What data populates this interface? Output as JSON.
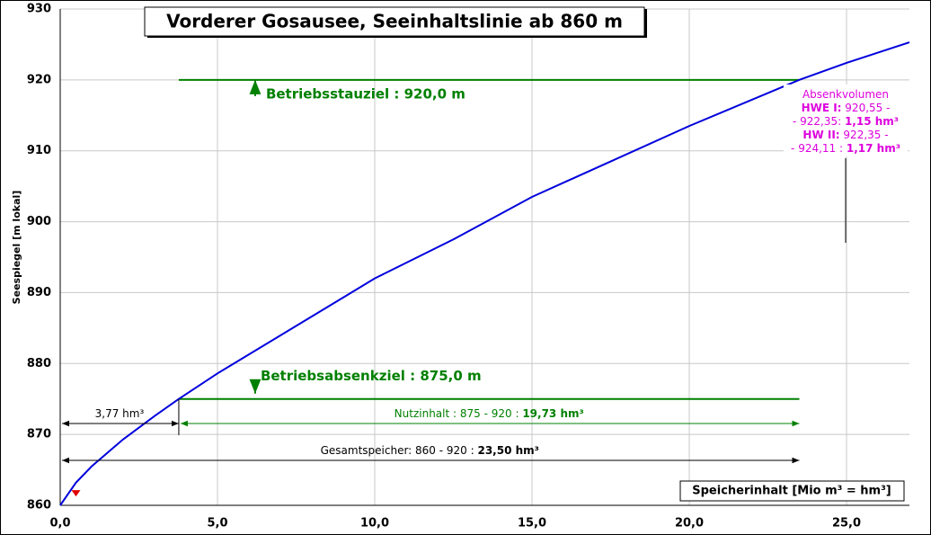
{
  "chart_data": {
    "type": "line",
    "title": "Vorderer Gosausee, Seeinhaltslinie ab  860 m",
    "y_label": "Seespiegel [m lokal]",
    "x_label": "Speicherinhalt  [Mio m³ = hm³]",
    "xlim": [
      0,
      27
    ],
    "ylim": [
      860,
      930
    ],
    "xticks": [
      {
        "value": 0,
        "label": "0,0"
      },
      {
        "value": 5,
        "label": "5,0"
      },
      {
        "value": 10,
        "label": "10,0"
      },
      {
        "value": 15,
        "label": "15,0"
      },
      {
        "value": 20,
        "label": "20,0"
      },
      {
        "value": 25,
        "label": "25,0"
      }
    ],
    "yticks": [
      860,
      870,
      880,
      890,
      900,
      910,
      920,
      930
    ],
    "grid": true,
    "series": [
      {
        "color": "#0000dd",
        "x": [
          0,
          0.5,
          1,
          2,
          3,
          3.77,
          5,
          7.5,
          10,
          12.5,
          15,
          17.5,
          20,
          23.5,
          25,
          27
        ],
        "values": [
          860,
          863.2,
          865.5,
          869.3,
          872.6,
          875,
          878.6,
          885.3,
          892,
          897.5,
          903.5,
          908.5,
          913.5,
          920,
          922.4,
          925.3
        ]
      }
    ],
    "levels": [
      {
        "label": "Betriebsstauziel : 920,0 m",
        "value": 920,
        "x_start": 3.77,
        "x_end": 23.5,
        "color": "#008000"
      },
      {
        "label": "Betriebsabsenkziel :  875,0 m",
        "value": 875,
        "x_start": 3.77,
        "x_end": 23.5,
        "color": "#008000"
      }
    ],
    "spans": [
      {
        "parts": [
          "3,77 hm³"
        ],
        "x_start": 0,
        "x_end": 3.77,
        "color": "#000000"
      },
      {
        "parts": [
          "Nutzinhalt : 875 - 920 : ",
          "19,73 hm³"
        ],
        "x_start": 3.77,
        "x_end": 23.5,
        "color": "#008000"
      },
      {
        "parts": [
          "Gesamtspeicher: 860 - 920 : ",
          "23,50 hm³"
        ],
        "x_start": 0,
        "x_end": 23.5,
        "color": "#000000"
      }
    ],
    "note": {
      "color": "#dd00dd",
      "lines": [
        [
          {
            "text": "Absenkvolumen",
            "bold": false
          }
        ],
        [
          {
            "text": "HWE I:",
            "bold": true
          },
          {
            "text": " 920,55 -",
            "bold": false
          }
        ],
        [
          {
            "text": "- 922,35: ",
            "bold": false
          },
          {
            "text": "1,15 hm³",
            "bold": true
          }
        ],
        [
          {
            "text": "HW II:",
            "bold": true
          },
          {
            "text": " 922,35 -",
            "bold": false
          }
        ],
        [
          {
            "text": "- 924,11 : ",
            "bold": false
          },
          {
            "text": "1,17 hm³",
            "bold": true
          }
        ]
      ]
    }
  }
}
